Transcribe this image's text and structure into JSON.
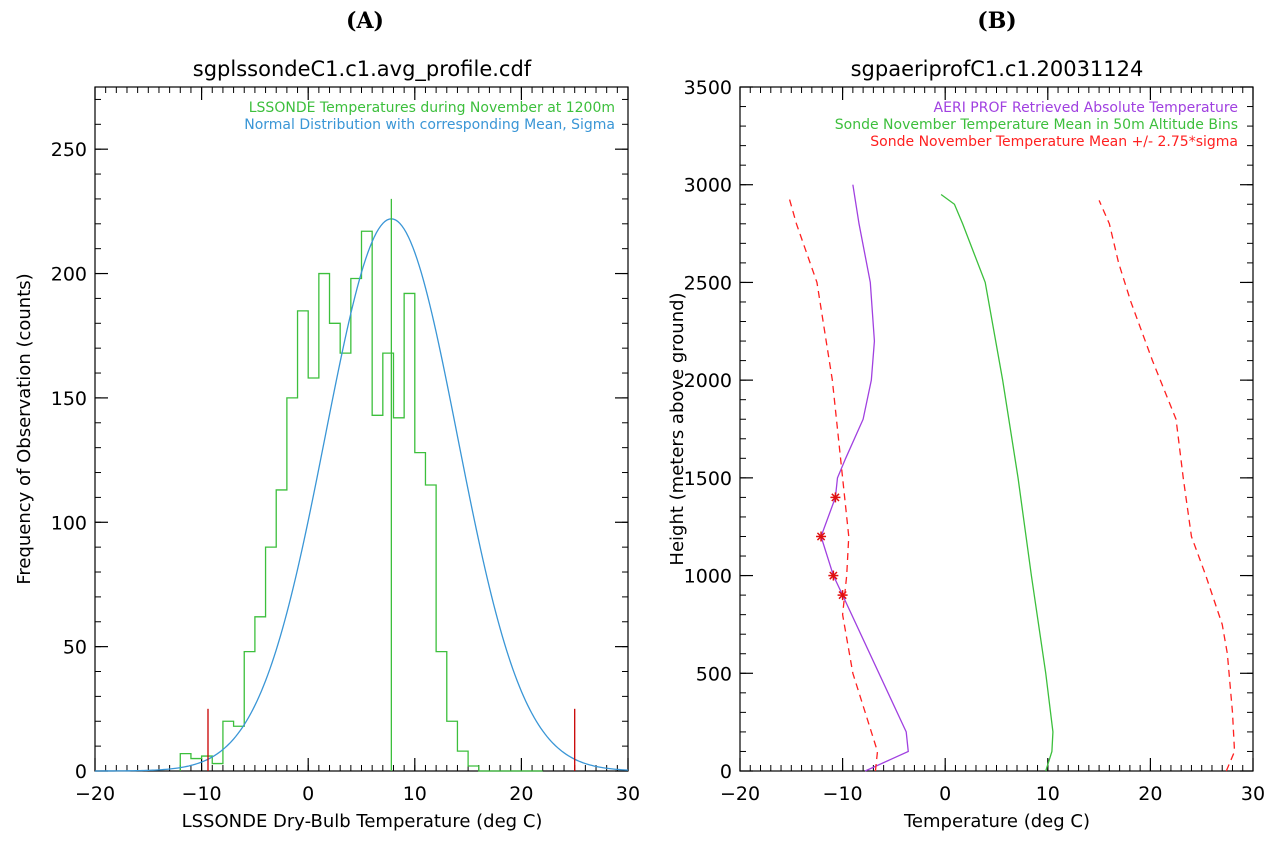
{
  "chart_data": [
    {
      "panel_label": "(A)",
      "type": "bar",
      "title": "sgplssondeC1.c1.avg_profile.cdf",
      "xlabel": "LSSONDE Dry-Bulb Temperature (deg C)",
      "ylabel": "Frequency of Observation (counts)",
      "xlim": [
        -20,
        30
      ],
      "ylim": [
        0,
        275
      ],
      "xticks": [
        -20,
        -10,
        0,
        10,
        20,
        30
      ],
      "yticks": [
        0,
        50,
        100,
        150,
        200,
        250
      ],
      "x_minor_step": 1,
      "y_minor_step": 10,
      "grid": false,
      "legend_position": "top-right",
      "series": [
        {
          "name": "LSSONDE Temperatures during November at 1200m",
          "style": "step-histogram",
          "color": "#3cbf3c",
          "bin_edges": [
            -12,
            -11,
            -10,
            -9,
            -8,
            -7,
            -6,
            -5,
            -4,
            -3,
            -2,
            -1,
            0,
            1,
            2,
            3,
            4,
            5,
            6,
            7,
            8,
            9,
            10,
            11,
            12,
            13,
            14,
            15,
            16,
            17,
            18,
            19,
            20,
            21,
            22
          ],
          "values": [
            7,
            5,
            6,
            3,
            20,
            18,
            48,
            62,
            90,
            113,
            150,
            185,
            158,
            200,
            180,
            168,
            198,
            217,
            143,
            168,
            142,
            192,
            128,
            115,
            48,
            20,
            8,
            2,
            0,
            0,
            0,
            0,
            0,
            0
          ]
        },
        {
          "name": "Normal Distribution with corresponding Mean, Sigma",
          "style": "line",
          "color": "#3a96d6",
          "mean": 7.8,
          "sigma": 6.2,
          "peak": 222
        }
      ],
      "markers": [
        {
          "x": 7.8,
          "y_top": 230,
          "color": "#3cbf3c"
        },
        {
          "x": -9.4,
          "y_top": 25,
          "color": "#c80000"
        },
        {
          "x": 25,
          "y_top": 25,
          "color": "#c80000"
        }
      ]
    },
    {
      "panel_label": "(B)",
      "type": "line",
      "title": "sgpaeriprofC1.c1.20031124",
      "xlabel": "Temperature (deg C)",
      "ylabel": "Height (meters above ground)",
      "xlim": [
        -20,
        30
      ],
      "ylim": [
        0,
        3500
      ],
      "xticks": [
        -20,
        -10,
        0,
        10,
        20,
        30
      ],
      "yticks": [
        0,
        500,
        1000,
        1500,
        2000,
        2500,
        3000,
        3500
      ],
      "x_minor_step": 1,
      "y_minor_step": 100,
      "grid": false,
      "legend_position": "top-right",
      "series": [
        {
          "name": "AERI PROF Retrieved Absolute Temperature",
          "style": "solid",
          "color": "#a040e0",
          "points": [
            [
              -7.8,
              0
            ],
            [
              -3.6,
              100
            ],
            [
              -3.8,
              200
            ],
            [
              -10.0,
              900
            ],
            [
              -10.9,
              1000
            ],
            [
              -12.1,
              1200
            ],
            [
              -10.7,
              1400
            ],
            [
              -10.5,
              1500
            ],
            [
              -9.7,
              1600
            ],
            [
              -8.0,
              1800
            ],
            [
              -7.2,
              2000
            ],
            [
              -6.9,
              2200
            ],
            [
              -7.3,
              2500
            ],
            [
              -8.4,
              2800
            ],
            [
              -9.0,
              3000
            ]
          ],
          "flagged_points": [
            [
              -10.0,
              900
            ],
            [
              -10.9,
              1000
            ],
            [
              -12.1,
              1200
            ],
            [
              -10.7,
              1400
            ]
          ],
          "flag_color": "#e01010"
        },
        {
          "name": "Sonde November Temperature Mean in 50m Altitude Bins",
          "style": "solid",
          "color": "#3cbf3c",
          "points": [
            [
              9.8,
              0
            ],
            [
              10.4,
              100
            ],
            [
              10.5,
              200
            ],
            [
              9.8,
              500
            ],
            [
              8.4,
              1000
            ],
            [
              7.1,
              1500
            ],
            [
              5.6,
              2000
            ],
            [
              3.9,
              2500
            ],
            [
              1.7,
              2800
            ],
            [
              0.9,
              2900
            ],
            [
              -0.4,
              2950
            ]
          ]
        },
        {
          "name": "Sonde November Temperature Mean +/- 2.75*sigma",
          "style": "dashed",
          "color": "#ff2020",
          "points": [
            [
              -6.8,
              0
            ],
            [
              -6.6,
              100
            ],
            [
              -7.2,
              200
            ],
            [
              -9.0,
              500
            ],
            [
              -10.0,
              800
            ],
            [
              -9.6,
              1000
            ],
            [
              -9.4,
              1200
            ],
            [
              -10.0,
              1500
            ],
            [
              -11.0,
              2000
            ],
            [
              -12.5,
              2500
            ],
            [
              -14.5,
              2800
            ],
            [
              -15.2,
              2930
            ]
          ]
        },
        {
          "name": "",
          "style": "dashed",
          "color": "#ff2020",
          "points": [
            [
              27.4,
              0
            ],
            [
              28.2,
              100
            ],
            [
              28.0,
              300
            ],
            [
              27.5,
              600
            ],
            [
              27.0,
              750
            ],
            [
              25.4,
              1000
            ],
            [
              24.0,
              1200
            ],
            [
              23.2,
              1500
            ],
            [
              22.5,
              1800
            ],
            [
              20.2,
              2100
            ],
            [
              18.1,
              2400
            ],
            [
              16.9,
              2600
            ],
            [
              16.0,
              2800
            ],
            [
              15.0,
              2920
            ]
          ]
        }
      ]
    }
  ]
}
